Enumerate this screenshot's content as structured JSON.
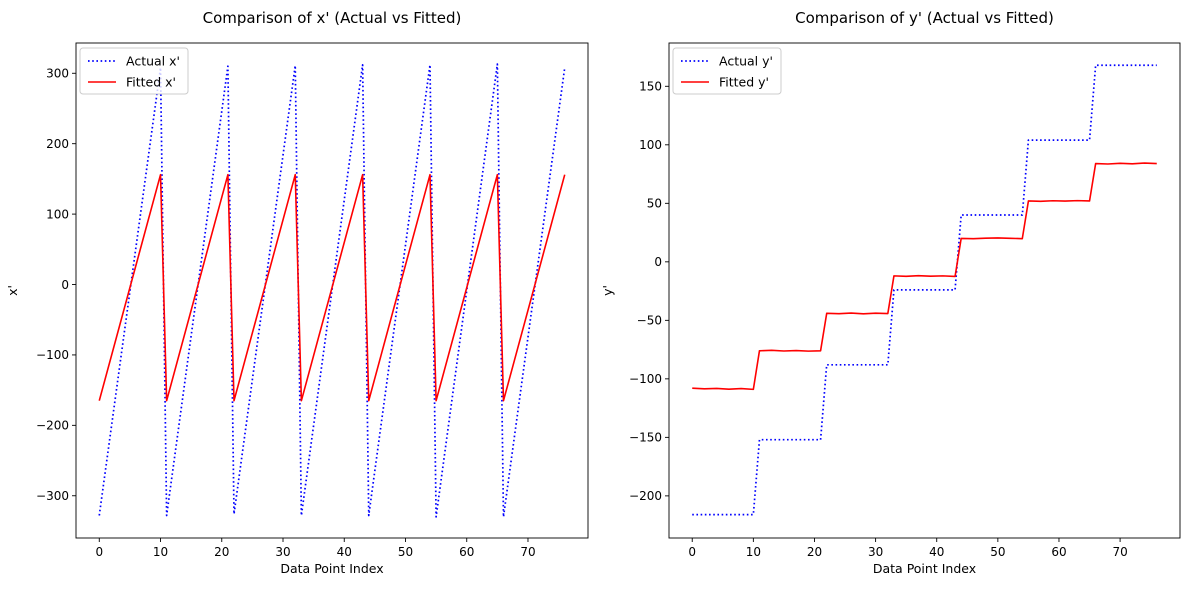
{
  "chart_data": [
    {
      "type": "line",
      "title": "Comparison of x' (Actual vs Fitted)",
      "xlabel": "Data Point Index",
      "ylabel": "x'",
      "xlim": [
        -3.8,
        79.8
      ],
      "ylim": [
        -360,
        343
      ],
      "xticks": [
        0,
        10,
        20,
        30,
        40,
        50,
        60,
        70
      ],
      "yticks": [
        -300,
        -200,
        -100,
        0,
        100,
        200,
        300
      ],
      "legend": "top-left",
      "grid": false,
      "series": [
        {
          "name": "Actual x'",
          "style": "dotted",
          "color": "#0000ff",
          "points": [
            [
              0,
              -328
            ],
            [
              10,
              308
            ],
            [
              11,
              -328
            ],
            [
              21,
              310
            ],
            [
              22,
              -326
            ],
            [
              32,
              311
            ],
            [
              33,
              -328
            ],
            [
              43,
              312
            ],
            [
              44,
              -328
            ],
            [
              54,
              312
            ],
            [
              55,
              -330
            ],
            [
              65,
              313
            ],
            [
              66,
              -330
            ],
            [
              76,
              308
            ]
          ]
        },
        {
          "name": "Fitted x'",
          "style": "solid",
          "color": "#ff0000",
          "points": [
            [
              0,
              -165
            ],
            [
              10,
              156
            ],
            [
              11,
              -165
            ],
            [
              21,
              156
            ],
            [
              22,
              -165
            ],
            [
              32,
              156
            ],
            [
              33,
              -165
            ],
            [
              43,
              156
            ],
            [
              44,
              -165
            ],
            [
              54,
              156
            ],
            [
              55,
              -165
            ],
            [
              65,
              156
            ],
            [
              66,
              -165
            ],
            [
              76,
              156
            ]
          ]
        }
      ]
    },
    {
      "type": "line",
      "title": "Comparison of y' (Actual vs Fitted)",
      "xlabel": "Data Point Index",
      "ylabel": "y'",
      "xlim": [
        -3.8,
        79.8
      ],
      "ylim": [
        -236,
        187
      ],
      "xticks": [
        0,
        10,
        20,
        30,
        40,
        50,
        60,
        70
      ],
      "yticks": [
        -200,
        -150,
        -100,
        -50,
        0,
        50,
        100,
        150
      ],
      "legend": "top-left",
      "grid": false,
      "series": [
        {
          "name": "Actual y'",
          "style": "dotted",
          "color": "#0000ff",
          "points": [
            [
              0,
              -216
            ],
            [
              10,
              -216
            ],
            [
              11,
              -152
            ],
            [
              21,
              -152
            ],
            [
              22,
              -88
            ],
            [
              32,
              -88
            ],
            [
              33,
              -24
            ],
            [
              43,
              -24
            ],
            [
              44,
              40
            ],
            [
              54,
              40
            ],
            [
              55,
              104
            ],
            [
              65,
              104
            ],
            [
              66,
              168
            ],
            [
              76,
              168
            ]
          ]
        },
        {
          "name": "Fitted y'",
          "style": "solid",
          "color": "#ff0000",
          "points": [
            [
              0,
              -108
            ],
            [
              2,
              -108.5
            ],
            [
              4,
              -108.2
            ],
            [
              6,
              -108.8
            ],
            [
              8,
              -108.3
            ],
            [
              10,
              -109
            ],
            [
              11,
              -76
            ],
            [
              13,
              -75.6
            ],
            [
              15,
              -76.2
            ],
            [
              17,
              -75.8
            ],
            [
              19,
              -76.3
            ],
            [
              21,
              -76
            ],
            [
              22,
              -44
            ],
            [
              24,
              -44.3
            ],
            [
              26,
              -43.8
            ],
            [
              28,
              -44.4
            ],
            [
              30,
              -43.9
            ],
            [
              32,
              -44.2
            ],
            [
              33,
              -12
            ],
            [
              35,
              -12.4
            ],
            [
              37,
              -11.8
            ],
            [
              39,
              -12.3
            ],
            [
              41,
              -12
            ],
            [
              43,
              -12.5
            ],
            [
              44,
              20
            ],
            [
              46,
              19.8
            ],
            [
              48,
              20.2
            ],
            [
              50,
              20.4
            ],
            [
              52,
              20.1
            ],
            [
              54,
              19.8
            ],
            [
              55,
              52
            ],
            [
              57,
              51.7
            ],
            [
              59,
              52.2
            ],
            [
              61,
              51.9
            ],
            [
              63,
              52.3
            ],
            [
              65,
              52
            ],
            [
              66,
              84
            ],
            [
              68,
              83.6
            ],
            [
              70,
              84.2
            ],
            [
              72,
              83.8
            ],
            [
              74,
              84.4
            ],
            [
              76,
              84
            ]
          ]
        }
      ]
    }
  ]
}
